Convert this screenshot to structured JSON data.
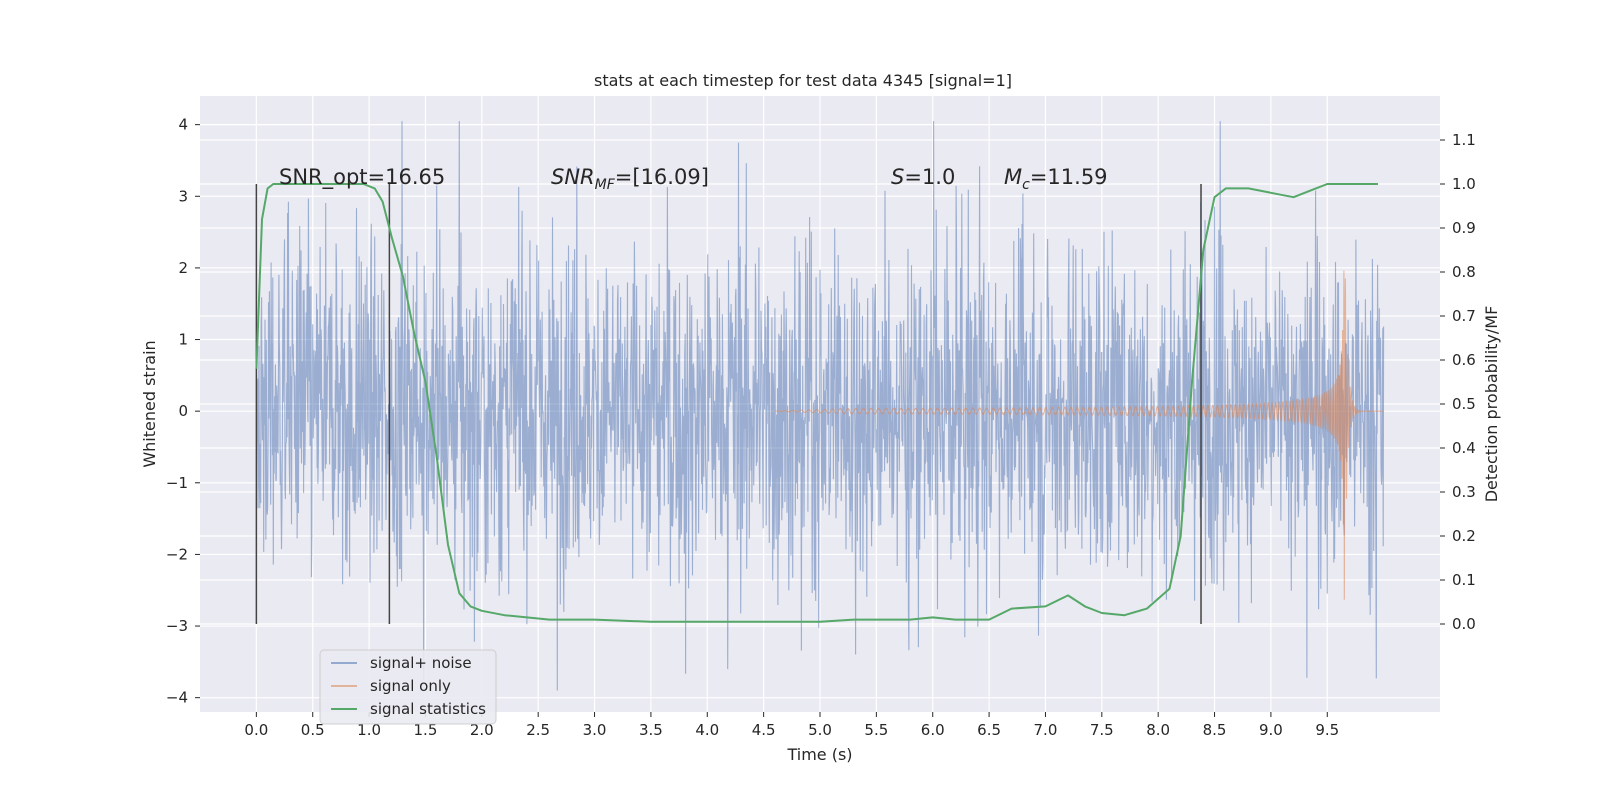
{
  "chart_data": {
    "type": "line",
    "title": "stats at each timestep for test data 4345 [signal=1]",
    "xlabel": "Time (s)",
    "ylabel": "Whitened strain",
    "ylabel_right": "Detection probability/MF",
    "xlim": [
      -0.5,
      10.5
    ],
    "ylim": [
      -4.2,
      4.4
    ],
    "ylim_right": [
      -0.2,
      1.2
    ],
    "x_ticks": [
      "0.0",
      "0.5",
      "1.0",
      "1.5",
      "2.0",
      "2.5",
      "3.0",
      "3.5",
      "4.0",
      "4.5",
      "5.0",
      "5.5",
      "6.0",
      "6.5",
      "7.0",
      "7.5",
      "8.0",
      "8.5",
      "9.0",
      "9.5"
    ],
    "y_ticks": [
      "4",
      "3",
      "2",
      "1",
      "0",
      "−1",
      "−2",
      "−3",
      "−4"
    ],
    "y_ticks_right": [
      "1.1",
      "1.0",
      "0.9",
      "0.8",
      "0.7",
      "0.6",
      "0.5",
      "0.4",
      "0.3",
      "0.2",
      "0.1",
      "0.0"
    ],
    "grid": true,
    "legend_position": "lower-left",
    "annotations": {
      "snr_opt": "SNR_opt=16.65",
      "snr_mf_base": "SNR",
      "snr_mf_sub": "MF",
      "snr_mf_rest": "=[16.09]",
      "s_base": "S",
      "s_rest": "=1.0",
      "mc_base": "M",
      "mc_sub": "c",
      "mc_rest": "=11.59"
    },
    "vlines_x": [
      0.0,
      1.18,
      8.38
    ],
    "series": [
      {
        "name": "signal+ noise",
        "color": "#4c72b0",
        "description_amplitude": 1.2,
        "x_range": [
          0.0,
          10.0
        ]
      },
      {
        "name": "signal only",
        "color": "#dd8452",
        "chirp_merger_time": 9.65,
        "peak_amplitude": 2.0
      },
      {
        "name": "signal statistics",
        "color": "#55a868",
        "x": [
          0.0,
          0.05,
          0.1,
          0.15,
          0.25,
          0.4,
          0.6,
          0.8,
          0.95,
          1.05,
          1.12,
          1.2,
          1.3,
          1.4,
          1.5,
          1.6,
          1.7,
          1.8,
          1.9,
          2.0,
          2.2,
          2.6,
          3.0,
          3.5,
          4.0,
          4.5,
          5.0,
          5.3,
          5.5,
          5.8,
          6.0,
          6.2,
          6.5,
          6.7,
          7.0,
          7.2,
          7.35,
          7.5,
          7.7,
          7.9,
          8.1,
          8.2,
          8.3,
          8.4,
          8.5,
          8.6,
          8.8,
          9.0,
          9.2,
          9.35,
          9.5,
          9.7,
          9.95
        ],
        "y": [
          0.58,
          0.92,
          0.99,
          1.0,
          1.0,
          1.0,
          1.0,
          1.0,
          1.0,
          0.99,
          0.96,
          0.88,
          0.79,
          0.66,
          0.55,
          0.38,
          0.18,
          0.07,
          0.04,
          0.03,
          0.02,
          0.01,
          0.01,
          0.005,
          0.005,
          0.005,
          0.005,
          0.01,
          0.01,
          0.01,
          0.015,
          0.01,
          0.01,
          0.035,
          0.04,
          0.065,
          0.04,
          0.025,
          0.02,
          0.035,
          0.08,
          0.2,
          0.55,
          0.85,
          0.97,
          0.99,
          0.99,
          0.98,
          0.97,
          0.985,
          1.0,
          1.0,
          1.0
        ]
      }
    ]
  }
}
